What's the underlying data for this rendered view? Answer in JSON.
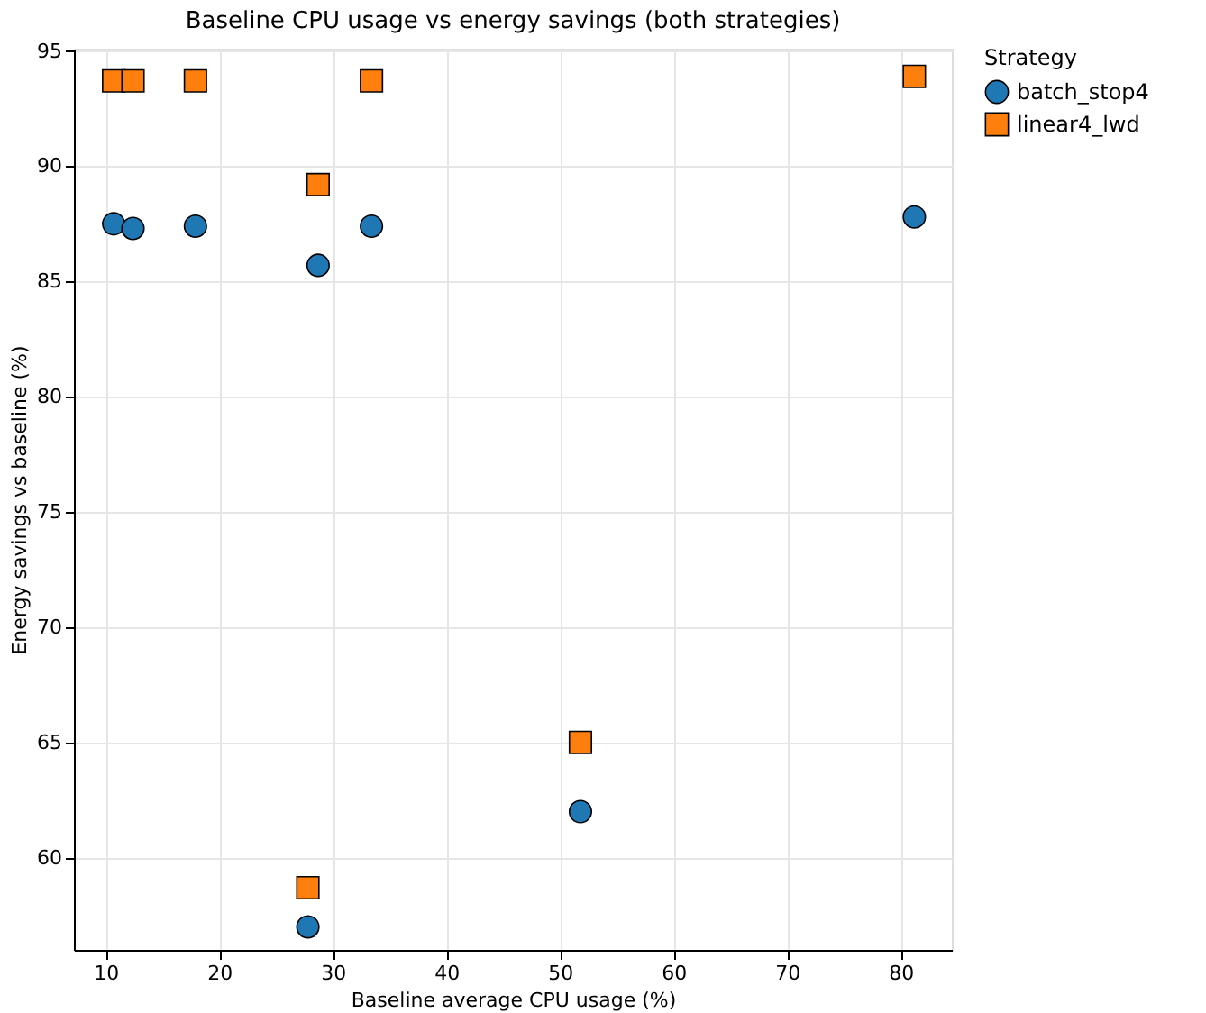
{
  "chart_data": {
    "type": "scatter",
    "title": "Baseline CPU usage vs energy savings (both strategies)",
    "xlabel": "Baseline average CPU usage (%)",
    "ylabel": "Energy savings vs baseline (%)",
    "legend_title": "Strategy",
    "legend": "top right",
    "grid": true,
    "xlim": [
      7.2,
      84.5
    ],
    "xticks": [
      10,
      20,
      30,
      40,
      50,
      60,
      70,
      80
    ],
    "ylim": [
      56.0,
      95.1
    ],
    "yticks": [
      60,
      65,
      70,
      75,
      80,
      85,
      90,
      95
    ],
    "series": [
      {
        "name": "batch_stop4",
        "color": "#1f77b4",
        "marker": "circle",
        "x": [
          10.7,
          12.4,
          17.9,
          28.7,
          33.4,
          81.2,
          51.8,
          27.8
        ],
        "values": [
          87.5,
          87.3,
          87.4,
          85.7,
          87.4,
          87.8,
          62.0,
          57.0
        ]
      },
      {
        "name": "linear4_lwd",
        "color": "#ff7f0e",
        "marker": "square",
        "x": [
          10.7,
          12.4,
          17.9,
          28.7,
          33.4,
          81.2,
          51.8,
          27.8
        ],
        "values": [
          93.7,
          93.7,
          93.7,
          89.2,
          93.7,
          93.9,
          65.0,
          58.7
        ]
      }
    ]
  }
}
